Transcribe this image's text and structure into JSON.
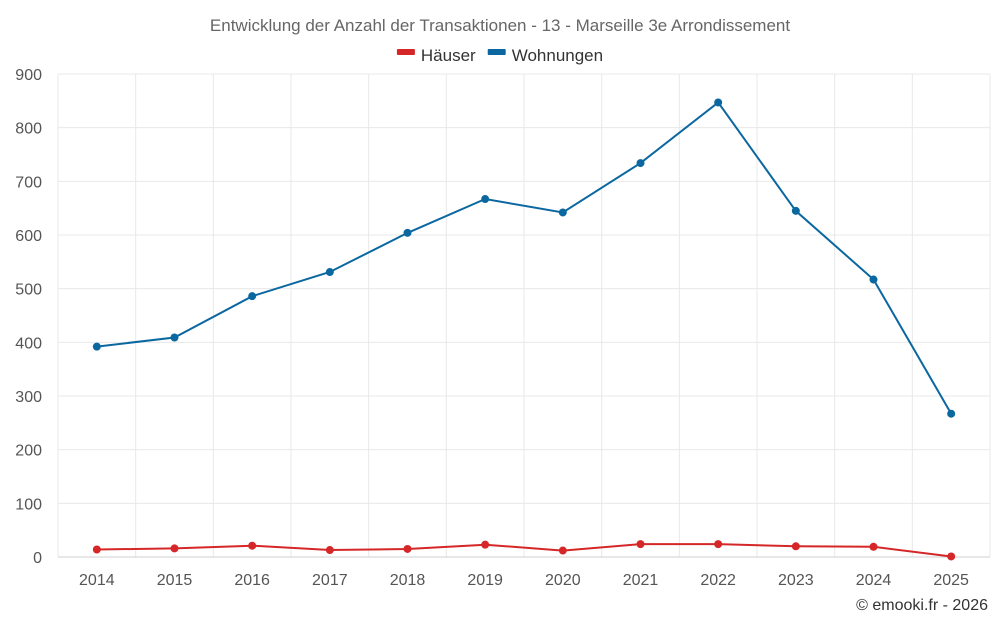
{
  "chart_data": {
    "type": "line",
    "title": "Entwicklung der Anzahl der Transaktionen - 13 - Marseille 3e Arrondissement",
    "xlabel": "",
    "ylabel": "",
    "categories": [
      "2014",
      "2015",
      "2016",
      "2017",
      "2018",
      "2019",
      "2020",
      "2021",
      "2022",
      "2023",
      "2024",
      "2025"
    ],
    "ylim": [
      0,
      900
    ],
    "yticks": [
      0,
      100,
      200,
      300,
      400,
      500,
      600,
      700,
      800,
      900
    ],
    "grid": true,
    "legend_position": "top-center",
    "series": [
      {
        "name": "Häuser",
        "color": "#d62728",
        "values": [
          14,
          16,
          21,
          13,
          15,
          23,
          12,
          24,
          24,
          20,
          19,
          1
        ]
      },
      {
        "name": "Wohnungen",
        "color": "#0b67a0",
        "values": [
          392,
          409,
          486,
          531,
          604,
          667,
          642,
          734,
          847,
          645,
          517,
          267
        ]
      }
    ]
  },
  "credit": "© emooki.fr - 2026"
}
